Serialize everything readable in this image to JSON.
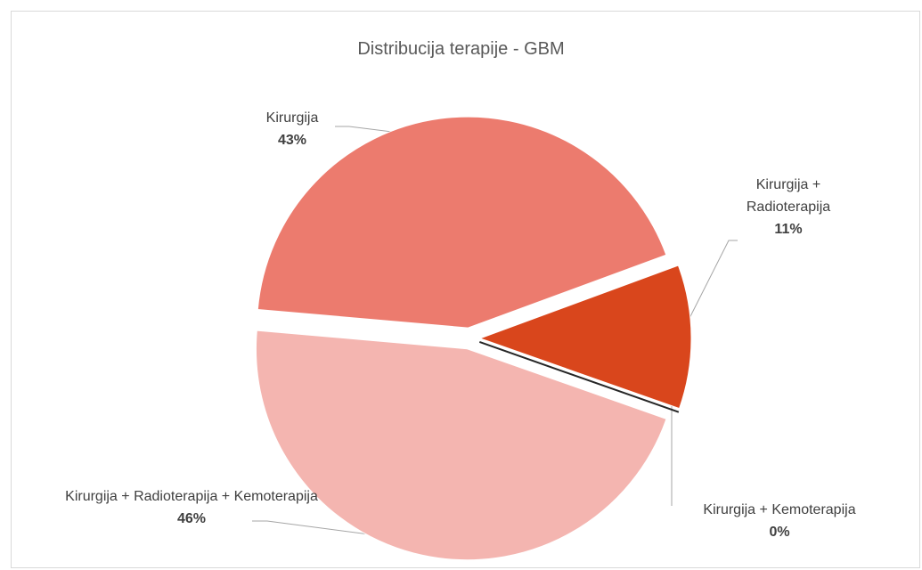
{
  "chart_data": {
    "type": "pie",
    "title": "Distribucija terapije - GBM",
    "categories": [
      "Kirurgija",
      "Kirurgija + Radioterapija",
      "Kirurgija + Kemoterapija",
      "Kirurgija + Radioterapija + Kemoterapija"
    ],
    "values": [
      43,
      11,
      0,
      46
    ],
    "value_labels": [
      "43%",
      "11%",
      "0%",
      "46%"
    ],
    "colors": [
      "#ec7b6e",
      "#d9461c",
      "#262626",
      "#f4b5b0"
    ]
  }
}
